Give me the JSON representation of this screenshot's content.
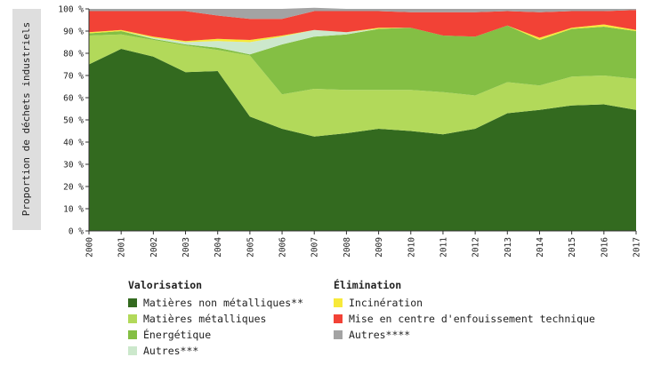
{
  "chart_data": {
    "type": "area",
    "stacked": true,
    "ylabel": "Proportion de déchets industriels",
    "ylim": [
      0,
      100
    ],
    "yticks": [
      "0 %",
      "10 %",
      "20 %",
      "30 %",
      "40 %",
      "50 %",
      "60 %",
      "70 %",
      "80 %",
      "90 %",
      "100 %"
    ],
    "categories": [
      "2000",
      "2001",
      "2002",
      "2003",
      "2004",
      "2005",
      "2006",
      "2007",
      "2008",
      "2009",
      "2010",
      "2011",
      "2012",
      "2013",
      "2014",
      "2015",
      "2016",
      "2017"
    ],
    "series": [
      {
        "name": "Matières non métalliques**",
        "group": "Valorisation",
        "color": "#336a1f",
        "values": [
          75.0,
          82.0,
          78.5,
          71.5,
          72.0,
          51.5,
          46.0,
          42.5,
          44.0,
          46.0,
          45.0,
          43.5,
          46.0,
          53.0,
          54.5,
          56.5,
          57.0,
          54.5
        ]
      },
      {
        "name": "Matières métalliques",
        "group": "Valorisation",
        "color": "#b2d95a",
        "values": [
          13.0,
          6.5,
          7.5,
          12.0,
          9.5,
          27.5,
          15.5,
          21.5,
          19.5,
          17.5,
          18.5,
          19.0,
          15.0,
          14.0,
          11.0,
          13.0,
          13.0,
          14.0
        ]
      },
      {
        "name": "Énergétique",
        "group": "Valorisation",
        "color": "#84bf44",
        "values": [
          1.0,
          1.5,
          0.5,
          0.5,
          1.0,
          0.5,
          22.5,
          23.5,
          25.0,
          27.5,
          28.0,
          25.5,
          26.5,
          25.5,
          20.5,
          21.5,
          22.0,
          21.5
        ]
      },
      {
        "name": "Autres***",
        "group": "Valorisation",
        "color": "#cce8cc",
        "values": [
          0.0,
          0.0,
          0.5,
          1.0,
          3.0,
          5.5,
          3.5,
          3.0,
          1.0,
          0.0,
          0.0,
          0.0,
          0.0,
          0.0,
          0.0,
          0.0,
          0.0,
          0.0
        ]
      },
      {
        "name": "Incinération",
        "group": "Élimination",
        "color": "#f7e93a",
        "values": [
          0.5,
          0.5,
          0.5,
          0.5,
          1.0,
          1.0,
          0.5,
          0.0,
          0.0,
          0.5,
          0.0,
          0.0,
          0.0,
          0.0,
          1.0,
          0.5,
          1.0,
          0.5
        ]
      },
      {
        "name": "Mise en centre d'enfouissement technique",
        "group": "Élimination",
        "color": "#f24236",
        "values": [
          9.5,
          8.5,
          11.5,
          13.5,
          10.5,
          9.5,
          7.5,
          8.5,
          9.5,
          7.5,
          7.0,
          10.5,
          11.0,
          6.5,
          11.5,
          7.5,
          6.0,
          9.0
        ]
      },
      {
        "name": "Autres****",
        "group": "Élimination",
        "color": "#a3a3a3",
        "values": [
          1.0,
          1.0,
          1.0,
          1.0,
          3.0,
          4.5,
          4.5,
          1.5,
          1.0,
          1.0,
          1.5,
          1.5,
          1.5,
          1.0,
          1.5,
          1.0,
          1.0,
          0.5
        ]
      }
    ],
    "legend": {
      "placement": "bottom",
      "groups": [
        {
          "title": "Valorisation",
          "items": [
            "Matières non métalliques**",
            "Matières métalliques",
            "Énergétique",
            "Autres***"
          ]
        },
        {
          "title": "Élimination",
          "items": [
            "Incinération",
            "Mise en centre d'enfouissement technique",
            "Autres****"
          ]
        }
      ]
    },
    "grid": false
  }
}
